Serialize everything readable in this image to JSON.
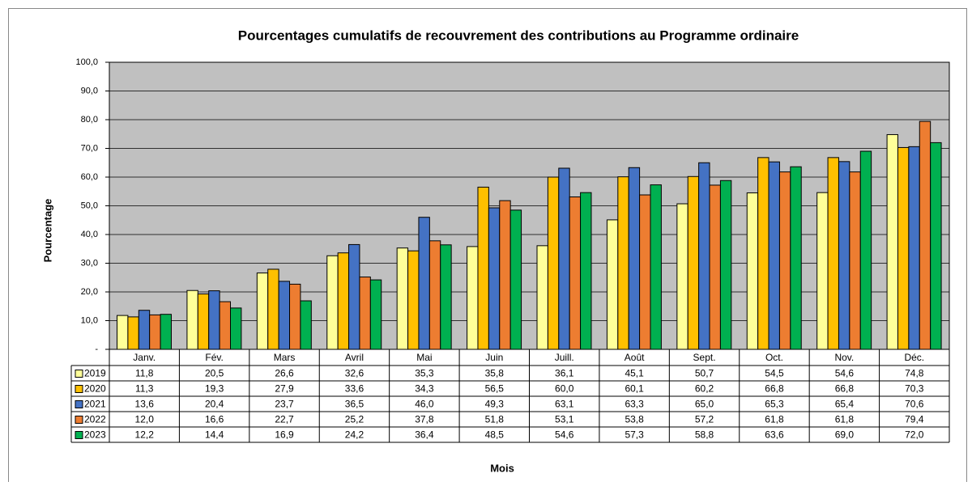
{
  "chart_data": {
    "type": "bar",
    "title": "Pourcentages cumulatifs de recouvrement des contributions au Programme ordinaire",
    "y_label": "Pourcentage",
    "x_label": "Mois",
    "categories": [
      "Janv.",
      "Fév.",
      "Mars",
      "Avril",
      "Mai",
      "Juin",
      "Juill.",
      "Août",
      "Sept.",
      "Oct.",
      "Nov.",
      "Déc."
    ],
    "series": [
      {
        "name": "2019",
        "color": "#ffff99",
        "values": [
          11.8,
          20.5,
          26.6,
          32.6,
          35.3,
          35.8,
          36.1,
          45.1,
          50.7,
          54.5,
          54.6,
          74.8
        ],
        "value_labels": [
          "11,8",
          "20,5",
          "26,6",
          "32,6",
          "35,3",
          "35,8",
          "36,1",
          "45,1",
          "50,7",
          "54,5",
          "54,6",
          "74,8"
        ]
      },
      {
        "name": "2020",
        "color": "#ffc000",
        "values": [
          11.3,
          19.3,
          27.9,
          33.6,
          34.3,
          56.5,
          60.0,
          60.1,
          60.2,
          66.8,
          66.8,
          70.3
        ],
        "value_labels": [
          "11,3",
          "19,3",
          "27,9",
          "33,6",
          "34,3",
          "56,5",
          "60,0",
          "60,1",
          "60,2",
          "66,8",
          "66,8",
          "70,3"
        ]
      },
      {
        "name": "2021",
        "color": "#4472c4",
        "values": [
          13.6,
          20.4,
          23.7,
          36.5,
          46.0,
          49.3,
          63.1,
          63.3,
          65.0,
          65.3,
          65.4,
          70.6
        ],
        "value_labels": [
          "13,6",
          "20,4",
          "23,7",
          "36,5",
          "46,0",
          "49,3",
          "63,1",
          "63,3",
          "65,0",
          "65,3",
          "65,4",
          "70,6"
        ]
      },
      {
        "name": "2022",
        "color": "#ed7d31",
        "values": [
          12.0,
          16.6,
          22.7,
          25.2,
          37.8,
          51.8,
          53.1,
          53.8,
          57.2,
          61.8,
          61.8,
          79.4
        ],
        "value_labels": [
          "12,0",
          "16,6",
          "22,7",
          "25,2",
          "37,8",
          "51,8",
          "53,1",
          "53,8",
          "57,2",
          "61,8",
          "61,8",
          "79,4"
        ]
      },
      {
        "name": "2023",
        "color": "#00b050",
        "values": [
          12.2,
          14.4,
          16.9,
          24.2,
          36.4,
          48.5,
          54.6,
          57.3,
          58.8,
          63.6,
          69.0,
          72.0
        ],
        "value_labels": [
          "12,2",
          "14,4",
          "16,9",
          "24,2",
          "36,4",
          "48,5",
          "54,6",
          "57,3",
          "58,8",
          "63,6",
          "69,0",
          "72,0"
        ]
      }
    ],
    "ylim": [
      0,
      100
    ],
    "yticks": [
      {
        "value": 0,
        "label": "-"
      },
      {
        "value": 10,
        "label": "10,0"
      },
      {
        "value": 20,
        "label": "20,0"
      },
      {
        "value": 30,
        "label": "30,0"
      },
      {
        "value": 40,
        "label": "40,0"
      },
      {
        "value": 50,
        "label": "50,0"
      },
      {
        "value": 60,
        "label": "60,0"
      },
      {
        "value": 70,
        "label": "70,0"
      },
      {
        "value": 80,
        "label": "80,0"
      },
      {
        "value": 90,
        "label": "90,0"
      },
      {
        "value": 100,
        "label": "100,0"
      }
    ],
    "grid": true,
    "plot_background": "#c0c0c0"
  }
}
